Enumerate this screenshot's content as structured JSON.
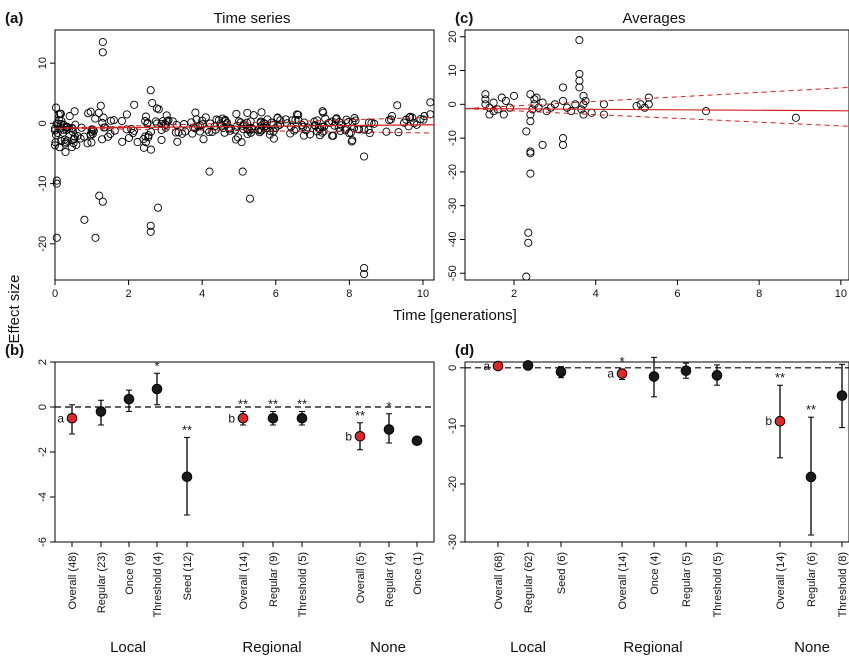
{
  "figure": {
    "shared_ylabel": "Effect size",
    "shared_xlabel": "Time [generations]"
  },
  "chart_data": [
    {
      "panel": "(a)",
      "type": "scatter",
      "title": "Time series",
      "xlim": [
        0,
        10.3
      ],
      "ylim": [
        -26,
        15.5
      ],
      "xticks": [
        0,
        2,
        4,
        6,
        8,
        10
      ],
      "yticks": [
        -20,
        -10,
        0,
        10
      ],
      "fit": {
        "intercept": -0.8,
        "slope": 0.055,
        "ci_low_end": -1.6,
        "ci_high_end": 1.0
      },
      "outliers": [
        [
          0.05,
          -19
        ],
        [
          0.05,
          -10
        ],
        [
          0.05,
          -9.5
        ],
        [
          0.8,
          -16
        ],
        [
          1.1,
          -19
        ],
        [
          1.3,
          13.5
        ],
        [
          1.3,
          11.8
        ],
        [
          1.2,
          -12
        ],
        [
          1.3,
          -13
        ],
        [
          2.6,
          -17
        ],
        [
          2.6,
          -18
        ],
        [
          2.8,
          -14
        ],
        [
          2.6,
          5.5
        ],
        [
          4.2,
          -8
        ],
        [
          5.1,
          -8
        ],
        [
          5.3,
          -12.5
        ],
        [
          8.4,
          -24
        ],
        [
          8.4,
          -25
        ],
        [
          8.4,
          -5.5
        ],
        [
          10.2,
          3.5
        ],
        [
          10.2,
          1.5
        ],
        [
          9.3,
          3
        ]
      ],
      "seed": 7
    },
    {
      "panel": "(c)",
      "type": "scatter",
      "title": "Averages",
      "xlim": [
        0.8,
        10.2
      ],
      "ylim": [
        -52,
        22
      ],
      "xticks": [
        2,
        4,
        6,
        8,
        10
      ],
      "yticks": [
        -50,
        -40,
        -30,
        -20,
        -10,
        0,
        10,
        20
      ],
      "fit": {
        "intercept": -1.2,
        "slope": -0.07,
        "ci_low_end": -6.5,
        "ci_high_end": 5.0
      },
      "points": [
        [
          1.3,
          3
        ],
        [
          1.3,
          1.5
        ],
        [
          1.3,
          0
        ],
        [
          1.4,
          -1
        ],
        [
          1.5,
          -2
        ],
        [
          1.4,
          -3
        ],
        [
          1.6,
          -1.5
        ],
        [
          1.5,
          0.5
        ],
        [
          1.7,
          2
        ],
        [
          1.8,
          1
        ],
        [
          1.9,
          -1
        ],
        [
          2.0,
          2.5
        ],
        [
          1.75,
          -3
        ],
        [
          2.3,
          -51
        ],
        [
          2.35,
          -41
        ],
        [
          2.35,
          -38
        ],
        [
          2.4,
          -20.5
        ],
        [
          2.4,
          -14.5
        ],
        [
          2.4,
          -14
        ],
        [
          2.3,
          -8
        ],
        [
          2.4,
          -5
        ],
        [
          2.4,
          -3
        ],
        [
          2.45,
          -1.5
        ],
        [
          2.5,
          0
        ],
        [
          2.5,
          1.5
        ],
        [
          2.55,
          2
        ],
        [
          2.4,
          3
        ],
        [
          2.6,
          -1
        ],
        [
          2.7,
          0.5
        ],
        [
          2.8,
          -2
        ],
        [
          2.9,
          -1
        ],
        [
          2.7,
          -12
        ],
        [
          3.2,
          5
        ],
        [
          3.2,
          1
        ],
        [
          3.2,
          -10
        ],
        [
          3.2,
          -12
        ],
        [
          3.3,
          -1
        ],
        [
          3.4,
          -2
        ],
        [
          3.5,
          0
        ],
        [
          3.6,
          19
        ],
        [
          3.6,
          9
        ],
        [
          3.6,
          7
        ],
        [
          3.6,
          5
        ],
        [
          3.7,
          2.5
        ],
        [
          3.7,
          0
        ],
        [
          3.65,
          -1.5
        ],
        [
          3.7,
          -3
        ],
        [
          3.75,
          1
        ],
        [
          4.2,
          0
        ],
        [
          4.2,
          -3
        ],
        [
          5.0,
          -0.5
        ],
        [
          5.1,
          0
        ],
        [
          5.3,
          2
        ],
        [
          5.3,
          0
        ],
        [
          5.2,
          -1
        ],
        [
          6.7,
          -2
        ],
        [
          8.9,
          -4
        ],
        [
          3.9,
          -2.5
        ],
        [
          3.0,
          0
        ]
      ]
    },
    {
      "panel": "(b)",
      "type": "errorbar",
      "ylim": [
        -6,
        2
      ],
      "yticks": [
        -6,
        -4,
        -2,
        0,
        2
      ],
      "groups": [
        "Local",
        "Regional",
        "None"
      ],
      "items": [
        {
          "label": "Overall (48)",
          "group": "Local",
          "y": -0.5,
          "lo": -1.2,
          "hi": 0.1,
          "red": true,
          "letter": "a",
          "sig": ""
        },
        {
          "label": "Regular (23)",
          "group": "Local",
          "y": -0.2,
          "lo": -0.8,
          "hi": 0.3,
          "red": false,
          "letter": "",
          "sig": ""
        },
        {
          "label": "Once (9)",
          "group": "Local",
          "y": 0.35,
          "lo": -0.2,
          "hi": 0.75,
          "red": false,
          "letter": "",
          "sig": ""
        },
        {
          "label": "Threshold (4)",
          "group": "Local",
          "y": 0.8,
          "lo": 0.1,
          "hi": 1.5,
          "red": false,
          "letter": "",
          "sig": "*"
        },
        {
          "label": "Seed (12)",
          "group": "Local",
          "y": -3.1,
          "lo": -4.8,
          "hi": -1.35,
          "red": false,
          "letter": "",
          "sig": "**"
        },
        {
          "label": "Overall (14)",
          "group": "Regional",
          "y": -0.5,
          "lo": -0.8,
          "hi": -0.2,
          "red": true,
          "letter": "b",
          "sig": "**"
        },
        {
          "label": "Regular (9)",
          "group": "Regional",
          "y": -0.5,
          "lo": -0.8,
          "hi": -0.2,
          "red": false,
          "letter": "",
          "sig": "**"
        },
        {
          "label": "Threshold (5)",
          "group": "Regional",
          "y": -0.5,
          "lo": -0.8,
          "hi": -0.2,
          "red": false,
          "letter": "",
          "sig": "**"
        },
        {
          "label": "Overall (5)",
          "group": "None",
          "y": -1.3,
          "lo": -1.9,
          "hi": -0.7,
          "red": true,
          "letter": "b",
          "sig": "**"
        },
        {
          "label": "Regular (4)",
          "group": "None",
          "y": -1.0,
          "lo": -1.6,
          "hi": -0.3,
          "red": false,
          "letter": "",
          "sig": "*"
        },
        {
          "label": "Once (1)",
          "group": "None",
          "y": -1.5,
          "lo": -1.5,
          "hi": -1.5,
          "red": false,
          "letter": "",
          "sig": ""
        }
      ]
    },
    {
      "panel": "(d)",
      "type": "errorbar",
      "ylim": [
        -30,
        1
      ],
      "yticks": [
        -30,
        -20,
        -10,
        0
      ],
      "groups": [
        "Local",
        "Regional",
        "None"
      ],
      "items": [
        {
          "label": "Overall (68)",
          "group": "Local",
          "y": 0.3,
          "lo": -0.2,
          "hi": 0.8,
          "red": true,
          "letter": "a",
          "sig": ""
        },
        {
          "label": "Regular (62)",
          "group": "Local",
          "y": 0.4,
          "lo": 0.0,
          "hi": 0.8,
          "red": false,
          "letter": "",
          "sig": ""
        },
        {
          "label": "Seed (6)",
          "group": "Local",
          "y": -0.7,
          "lo": -1.7,
          "hi": 0.2,
          "red": false,
          "letter": "",
          "sig": ""
        },
        {
          "label": "Overall (14)",
          "group": "Regional",
          "y": -1.0,
          "lo": -2.0,
          "hi": -0.2,
          "red": true,
          "letter": "a",
          "sig": "*"
        },
        {
          "label": "Once (4)",
          "group": "Regional",
          "y": -1.5,
          "lo": -5.0,
          "hi": 1.8,
          "red": false,
          "letter": "",
          "sig": ""
        },
        {
          "label": "Regular (5)",
          "group": "Regional",
          "y": -0.5,
          "lo": -1.8,
          "hi": 0.8,
          "red": false,
          "letter": "",
          "sig": ""
        },
        {
          "label": "Threshold (5)",
          "group": "Regional",
          "y": -1.3,
          "lo": -3.0,
          "hi": 0.5,
          "red": false,
          "letter": "",
          "sig": ""
        },
        {
          "label": "Overall (14)",
          "group": "None",
          "y": -9.2,
          "lo": -15.5,
          "hi": -3.0,
          "red": true,
          "letter": "b",
          "sig": "**"
        },
        {
          "label": "Regular (6)",
          "group": "None",
          "y": -18.8,
          "lo": -28.8,
          "hi": -8.5,
          "red": false,
          "letter": "",
          "sig": "**"
        },
        {
          "label": "Threshold (8)",
          "group": "None",
          "y": -4.8,
          "lo": -10.3,
          "hi": 0.6,
          "red": false,
          "letter": "",
          "sig": ""
        }
      ]
    }
  ]
}
